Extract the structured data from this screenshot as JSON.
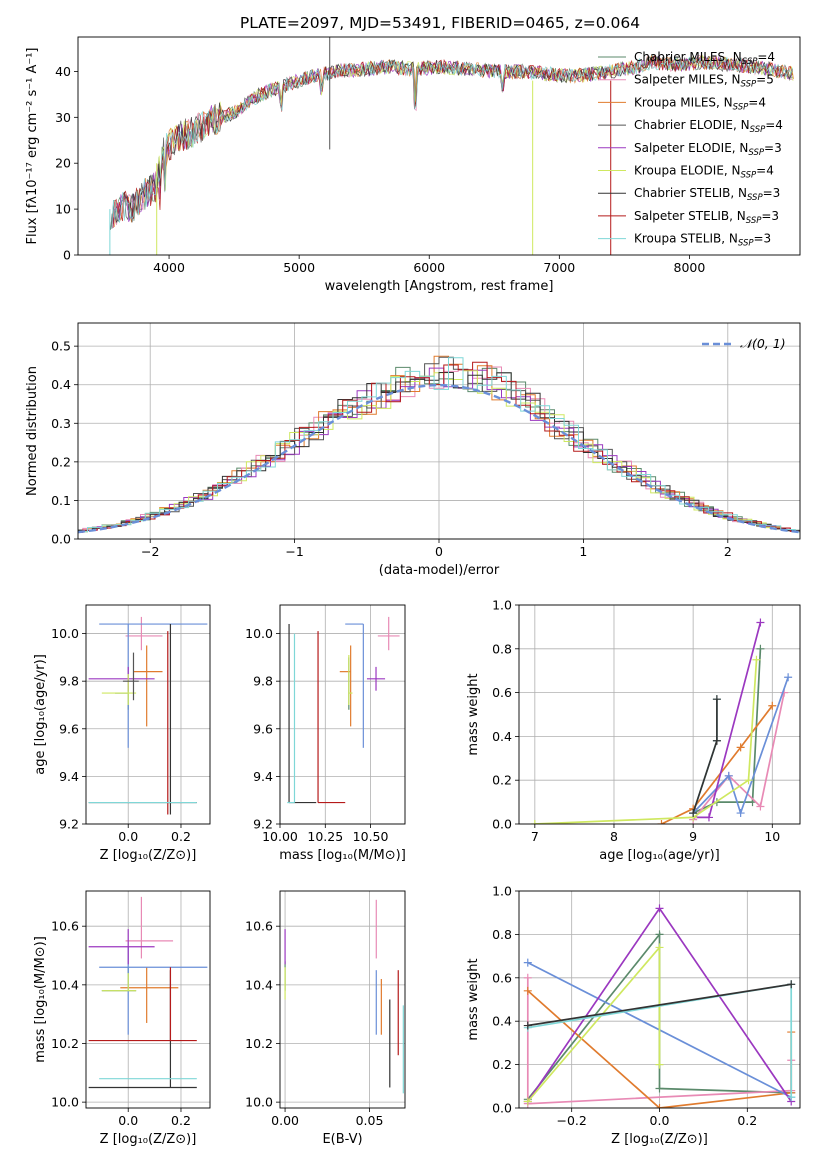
{
  "figure_title": "PLATE=2097, MJD=53491, FIBERID=0465, z=0.064",
  "colors": {
    "Chabrier MILES": "#5b8a6b",
    "Salpeter MILES": "#e88ab5",
    "Kroupa MILES": "#e07b2e",
    "Chabrier ELODIE": "#555555",
    "Salpeter ELODIE": "#9b38c0",
    "Kroupa ELODIE": "#cfe860",
    "Chabrier STELIB": "#333333",
    "Salpeter STELIB": "#b51a1a",
    "Kroupa STELIB": "#7fd7d7",
    "gauss": "#6a8fd8"
  },
  "chart_data": [
    {
      "id": "spectrum",
      "type": "line",
      "xlabel": "wavelength [Angstrom, rest frame]",
      "ylabel": "Flux [fλ10⁻¹⁷ erg cm⁻² s⁻¹ A⁻¹]",
      "xlim": [
        3300,
        8850
      ],
      "ylim": [
        0,
        47.5
      ],
      "xticks": [
        4000,
        5000,
        6000,
        7000,
        8000
      ],
      "yticks": [
        0,
        10,
        20,
        30,
        40
      ],
      "grid": false,
      "legend_position": "top-right",
      "series": [
        {
          "name": "Chabrier MILES, NSSP=4",
          "label_main": "Chabrier MILES, N",
          "label_sub": "SSP",
          "label_tail": "=4",
          "color_key": "Chabrier MILES"
        },
        {
          "name": "Salpeter MILES, NSSP=5",
          "label_main": "Salpeter MILES, N",
          "label_sub": "SSP",
          "label_tail": "=5",
          "color_key": "Salpeter MILES"
        },
        {
          "name": "Kroupa MILES, NSSP=4",
          "label_main": "Kroupa MILES, N",
          "label_sub": "SSP",
          "label_tail": "=4",
          "color_key": "Kroupa MILES"
        },
        {
          "name": "Chabrier ELODIE, NSSP=4",
          "label_main": "Chabrier ELODIE, N",
          "label_sub": "SSP",
          "label_tail": "=4",
          "color_key": "Chabrier ELODIE"
        },
        {
          "name": "Salpeter ELODIE, NSSP=3",
          "label_main": "Salpeter ELODIE, N",
          "label_sub": "SSP",
          "label_tail": "=3",
          "color_key": "Salpeter ELODIE"
        },
        {
          "name": "Kroupa ELODIE, NSSP=4",
          "label_main": "Kroupa ELODIE, N",
          "label_sub": "SSP",
          "label_tail": "=4",
          "color_key": "Kroupa ELODIE"
        },
        {
          "name": "Chabrier STELIB, NSSP=3",
          "label_main": "Chabrier STELIB, N",
          "label_sub": "SSP",
          "label_tail": "=3",
          "color_key": "Chabrier STELIB"
        },
        {
          "name": "Salpeter STELIB, NSSP=3",
          "label_main": "Salpeter STELIB, N",
          "label_sub": "SSP",
          "label_tail": "=3",
          "color_key": "Salpeter STELIB"
        },
        {
          "name": "Kroupa STELIB, NSSP=3",
          "label_main": "Kroupa STELIB, N",
          "label_sub": "SSP",
          "label_tail": "=3",
          "color_key": "Kroupa STELIB"
        }
      ],
      "continuum": {
        "x": [
          3550,
          3650,
          3700,
          3800,
          3900,
          3950,
          4000,
          4100,
          4200,
          4300,
          4400,
          4500,
          4700,
          4900,
          5100,
          5300,
          5500,
          5700,
          5900,
          6100,
          6300,
          6500,
          6700,
          6900,
          7100,
          7300,
          7500,
          7600,
          7700,
          7900,
          8100,
          8300,
          8500,
          8600,
          8800
        ],
        "y": [
          9,
          11,
          10,
          13,
          15,
          22,
          24,
          26,
          27,
          29,
          30,
          31,
          35,
          37,
          39,
          40,
          40.5,
          41,
          40.5,
          41,
          40.5,
          40,
          40,
          39.5,
          39,
          39.5,
          40.5,
          41,
          42,
          41.5,
          42,
          41.5,
          41,
          40.5,
          39.5
        ]
      }
    },
    {
      "id": "residuals",
      "type": "line",
      "xlabel": "(data-model)/error",
      "ylabel": "Normed distribution",
      "xlim": [
        -2.5,
        2.5
      ],
      "ylim": [
        0,
        0.56
      ],
      "xticks": [
        -2,
        -1,
        0,
        1,
        2
      ],
      "yticks": [
        0.0,
        0.1,
        0.2,
        0.3,
        0.4,
        0.5
      ],
      "grid": true,
      "legend_position": "top-right",
      "legend_label": "𝒩(0, 1)",
      "gaussian": {
        "mean": 0,
        "sigma": 1
      }
    },
    {
      "id": "age_vs_Z",
      "type": "scatter",
      "xlabel": "Z [log₁₀(Z/Z⊙)]",
      "ylabel": "age  [log₁₀(age/yr)]",
      "xlim": [
        -0.16,
        0.31
      ],
      "ylim": [
        9.2,
        10.12
      ],
      "xticks": [
        0.0,
        0.2
      ],
      "yticks": [
        9.2,
        9.4,
        9.6,
        9.8,
        10.0
      ],
      "grid": true,
      "points": [
        {
          "x": 0.0,
          "y": 9.75,
          "xerr": [
            0.05,
            0.0
          ],
          "yerr": [
            0.07,
            0.03
          ],
          "color_key": "Chabrier MILES"
        },
        {
          "x": 0.05,
          "y": 9.99,
          "xerr": [
            0.06,
            0.08
          ],
          "yerr": [
            0.06,
            0.08
          ],
          "color_key": "Salpeter MILES"
        },
        {
          "x": 0.07,
          "y": 9.84,
          "xerr": [
            0.05,
            0.06
          ],
          "yerr": [
            0.23,
            0.11
          ],
          "color_key": "Kroupa MILES"
        },
        {
          "x": 0.0,
          "y": 10.04,
          "xerr": [
            0.11,
            0.3
          ],
          "yerr": [
            0.52,
            0.0
          ],
          "color_key": "gauss"
        },
        {
          "x": 0.0,
          "y": 9.81,
          "xerr": [
            0.15,
            0.1
          ],
          "yerr": [
            0.05,
            0.05
          ],
          "color_key": "Salpeter ELODIE"
        },
        {
          "x": 0.0,
          "y": 9.75,
          "xerr": [
            0.1,
            0.03
          ],
          "yerr": [
            0.05,
            0.08
          ],
          "color_key": "Kroupa ELODIE"
        },
        {
          "x": 0.16,
          "y": 9.29,
          "xerr": [
            0.31,
            0.1
          ],
          "yerr": [
            0.05,
            0.75
          ],
          "color_key": "Chabrier STELIB"
        },
        {
          "x": 0.15,
          "y": 9.29,
          "xerr": [
            0.0,
            0.0
          ],
          "yerr": [
            0.05,
            0.72
          ],
          "color_key": "Salpeter STELIB"
        },
        {
          "x": 0.16,
          "y": 9.29,
          "xerr": [
            0.31,
            0.1
          ],
          "yerr": [
            0.0,
            0.0
          ],
          "color_key": "Kroupa STELIB"
        },
        {
          "x": 0.02,
          "y": 9.8,
          "xerr": [
            0.04,
            0.02
          ],
          "yerr": [
            0.08,
            0.12
          ],
          "color_key": "Chabrier ELODIE"
        }
      ]
    },
    {
      "id": "age_vs_mass",
      "type": "scatter",
      "xlabel": "mass [log₁₀(M/M⊙)]",
      "ylabel": "",
      "xlim": [
        10.0,
        10.69
      ],
      "ylim": [
        9.2,
        10.12
      ],
      "xticks": [
        10.0,
        10.25,
        10.5
      ],
      "yticks": [
        9.2,
        9.4,
        9.6,
        9.8,
        10.0
      ],
      "grid": true,
      "points": [
        {
          "x": 10.38,
          "y": 9.78,
          "xerr": [
            0.0,
            0.0
          ],
          "yerr": [
            0.1,
            0.12
          ],
          "color_key": "Chabrier MILES"
        },
        {
          "x": 10.6,
          "y": 9.99,
          "xerr": [
            0.06,
            0.06
          ],
          "yerr": [
            0.06,
            0.08
          ],
          "color_key": "Salpeter MILES"
        },
        {
          "x": 10.39,
          "y": 9.84,
          "xerr": [
            0.06,
            0.0
          ],
          "yerr": [
            0.23,
            0.11
          ],
          "color_key": "Kroupa MILES"
        },
        {
          "x": 10.46,
          "y": 10.04,
          "xerr": [
            0.1,
            0.0
          ],
          "yerr": [
            0.52,
            0.0
          ],
          "color_key": "gauss"
        },
        {
          "x": 10.53,
          "y": 9.81,
          "xerr": [
            0.05,
            0.05
          ],
          "yerr": [
            0.05,
            0.05
          ],
          "color_key": "Salpeter ELODIE"
        },
        {
          "x": 10.38,
          "y": 9.75,
          "xerr": [
            0.0,
            0.02
          ],
          "yerr": [
            0.05,
            0.16
          ],
          "color_key": "Kroupa ELODIE"
        },
        {
          "x": 10.05,
          "y": 9.29,
          "xerr": [
            0.0,
            0.15
          ],
          "yerr": [
            0.0,
            0.75
          ],
          "color_key": "Chabrier STELIB"
        },
        {
          "x": 10.21,
          "y": 9.29,
          "xerr": [
            0.0,
            0.15
          ],
          "yerr": [
            0.0,
            0.72
          ],
          "color_key": "Salpeter STELIB"
        },
        {
          "x": 10.08,
          "y": 9.29,
          "xerr": [
            0.04,
            0.0
          ],
          "yerr": [
            0.0,
            0.71
          ],
          "color_key": "Kroupa STELIB"
        }
      ]
    },
    {
      "id": "massweight_vs_age",
      "type": "line",
      "xlabel": "age  [log₁₀(age/yr)]",
      "ylabel": "mass weight",
      "xlim": [
        6.8,
        10.35
      ],
      "ylim": [
        0,
        1.0
      ],
      "xticks": [
        7,
        8,
        9,
        10
      ],
      "yticks": [
        0.0,
        0.2,
        0.4,
        0.6,
        0.8,
        1.0
      ],
      "grid": true,
      "series": [
        {
          "color_key": "Chabrier MILES",
          "x": [
            9.0,
            9.3,
            9.75,
            9.85
          ],
          "y": [
            0.05,
            0.1,
            0.1,
            0.8
          ]
        },
        {
          "color_key": "Salpeter MILES",
          "x": [
            9.0,
            9.45,
            9.85,
            10.15
          ],
          "y": [
            0.02,
            0.22,
            0.08,
            0.6
          ]
        },
        {
          "color_key": "Kroupa MILES",
          "x": [
            8.6,
            9.0,
            9.6,
            10.0
          ],
          "y": [
            0.0,
            0.07,
            0.35,
            0.54
          ]
        },
        {
          "color_key": "gauss",
          "x": [
            9.0,
            9.45,
            9.6,
            10.2
          ],
          "y": [
            0.05,
            0.22,
            0.05,
            0.67
          ]
        },
        {
          "color_key": "Salpeter ELODIE",
          "x": [
            9.0,
            9.2,
            9.85
          ],
          "y": [
            0.03,
            0.03,
            0.92
          ]
        },
        {
          "color_key": "Kroupa ELODIE",
          "x": [
            7.0,
            9.0,
            9.7,
            9.8
          ],
          "y": [
            0.0,
            0.03,
            0.2,
            0.75
          ]
        },
        {
          "color_key": "Kroupa STELIB",
          "x": [
            9.0,
            9.3,
            9.3
          ],
          "y": [
            0.05,
            0.38,
            0.57
          ]
        },
        {
          "color_key": "Chabrier STELIB",
          "x": [
            9.0,
            9.3,
            9.3
          ],
          "y": [
            0.05,
            0.38,
            0.57
          ]
        }
      ]
    },
    {
      "id": "mass_vs_Z",
      "type": "scatter",
      "xlabel": "Z [log₁₀(Z/Z⊙)]",
      "ylabel": "mass [log₁₀(M/M⊙)]",
      "xlim": [
        -0.16,
        0.31
      ],
      "ylim": [
        9.98,
        10.72
      ],
      "xticks": [
        0.0,
        0.2
      ],
      "yticks": [
        10.0,
        10.2,
        10.4,
        10.6
      ],
      "grid": true,
      "points": [
        {
          "x": 0.0,
          "y": 10.38,
          "xerr": [
            0.1,
            0.03
          ],
          "yerr": [
            0.0,
            0.08
          ],
          "color_key": "Chabrier MILES"
        },
        {
          "x": 0.05,
          "y": 10.55,
          "xerr": [
            0.06,
            0.12
          ],
          "yerr": [
            0.06,
            0.15
          ],
          "color_key": "Salpeter MILES"
        },
        {
          "x": 0.07,
          "y": 10.39,
          "xerr": [
            0.1,
            0.12
          ],
          "yerr": [
            0.12,
            0.07
          ],
          "color_key": "Kroupa MILES"
        },
        {
          "x": 0.0,
          "y": 10.46,
          "xerr": [
            0.11,
            0.3
          ],
          "yerr": [
            0.23,
            0.07
          ],
          "color_key": "gauss"
        },
        {
          "x": 0.0,
          "y": 10.53,
          "xerr": [
            0.15,
            0.1
          ],
          "yerr": [
            0.06,
            0.06
          ],
          "color_key": "Salpeter ELODIE"
        },
        {
          "x": 0.0,
          "y": 10.38,
          "xerr": [
            0.1,
            0.03
          ],
          "yerr": [
            0.0,
            0.06
          ],
          "color_key": "Kroupa ELODIE"
        },
        {
          "x": 0.16,
          "y": 10.05,
          "xerr": [
            0.31,
            0.1
          ],
          "yerr": [
            0.0,
            0.4
          ],
          "color_key": "Chabrier STELIB"
        },
        {
          "x": 0.16,
          "y": 10.21,
          "xerr": [
            0.31,
            0.1
          ],
          "yerr": [
            0.0,
            0.25
          ],
          "color_key": "Salpeter STELIB"
        },
        {
          "x": 0.16,
          "y": 10.08,
          "xerr": [
            0.27,
            0.1
          ],
          "yerr": [
            0.0,
            0.0
          ],
          "color_key": "Kroupa STELIB"
        }
      ]
    },
    {
      "id": "mass_vs_EBV",
      "type": "scatter",
      "xlabel": "E(B-V)",
      "ylabel": "",
      "xlim": [
        -0.003,
        0.071
      ],
      "ylim": [
        9.98,
        10.72
      ],
      "xticks": [
        0.0,
        0.05
      ],
      "yticks": [
        10.0,
        10.2,
        10.4,
        10.6
      ],
      "grid": true,
      "points": [
        {
          "x": 0.0,
          "y": 10.4,
          "xerr": [
            0.0,
            0.0
          ],
          "yerr": [
            0.02,
            0.08
          ],
          "color_key": "Chabrier MILES"
        },
        {
          "x": 0.054,
          "y": 10.55,
          "xerr": [
            0.0,
            0.0
          ],
          "yerr": [
            0.06,
            0.14
          ],
          "color_key": "Salpeter MILES"
        },
        {
          "x": 0.057,
          "y": 10.35,
          "xerr": [
            0.0,
            0.0
          ],
          "yerr": [
            0.12,
            0.07
          ],
          "color_key": "Kroupa MILES"
        },
        {
          "x": 0.054,
          "y": 10.38,
          "xerr": [
            0.0,
            0.0
          ],
          "yerr": [
            0.15,
            0.07
          ],
          "color_key": "gauss"
        },
        {
          "x": 0.0,
          "y": 10.53,
          "xerr": [
            0.0,
            0.0
          ],
          "yerr": [
            0.06,
            0.06
          ],
          "color_key": "Salpeter ELODIE"
        },
        {
          "x": 0.0,
          "y": 10.4,
          "xerr": [
            0.0,
            0.0
          ],
          "yerr": [
            0.05,
            0.06
          ],
          "color_key": "Kroupa ELODIE"
        },
        {
          "x": 0.062,
          "y": 10.25,
          "xerr": [
            0.0,
            0.0
          ],
          "yerr": [
            0.2,
            0.1
          ],
          "color_key": "Chabrier STELIB"
        },
        {
          "x": 0.067,
          "y": 10.3,
          "xerr": [
            0.0,
            0.0
          ],
          "yerr": [
            0.14,
            0.15
          ],
          "color_key": "Salpeter STELIB"
        },
        {
          "x": 0.07,
          "y": 10.18,
          "xerr": [
            0.0,
            0.0
          ],
          "yerr": [
            0.15,
            0.15
          ],
          "color_key": "Kroupa STELIB"
        }
      ]
    },
    {
      "id": "massweight_vs_Z",
      "type": "line",
      "xlabel": "Z [log₁₀(Z/Z⊙)]",
      "ylabel": "mass weight",
      "xlim": [
        -0.32,
        0.32
      ],
      "ylim": [
        0,
        1.0
      ],
      "xticks": [
        -0.2,
        0.0,
        0.2
      ],
      "yticks": [
        0.0,
        0.2,
        0.4,
        0.6,
        0.8,
        1.0
      ],
      "grid": true,
      "series": [
        {
          "color_key": "Chabrier MILES",
          "x": [
            -0.3,
            0.0,
            0.0,
            0.3
          ],
          "y": [
            0.04,
            0.8,
            0.09,
            0.07
          ]
        },
        {
          "color_key": "Salpeter MILES",
          "x": [
            -0.3,
            -0.3,
            0.3,
            0.3
          ],
          "y": [
            0.6,
            0.02,
            0.08,
            0.22
          ]
        },
        {
          "color_key": "Kroupa MILES",
          "x": [
            -0.3,
            0.0,
            0.3,
            0.3
          ],
          "y": [
            0.54,
            0.0,
            0.07,
            0.35
          ]
        },
        {
          "color_key": "gauss",
          "x": [
            -0.3,
            0.3
          ],
          "y": [
            0.67,
            0.05
          ]
        },
        {
          "color_key": "Salpeter ELODIE",
          "x": [
            -0.3,
            0.0,
            0.3
          ],
          "y": [
            0.03,
            0.92,
            0.03
          ]
        },
        {
          "color_key": "Kroupa ELODIE",
          "x": [
            -0.3,
            0.0,
            0.0
          ],
          "y": [
            0.03,
            0.74,
            0.2
          ]
        },
        {
          "color_key": "Kroupa STELIB",
          "x": [
            -0.3,
            0.3,
            0.3
          ],
          "y": [
            0.37,
            0.57,
            0.05
          ]
        },
        {
          "color_key": "Chabrier STELIB",
          "x": [
            -0.3,
            0.3
          ],
          "y": [
            0.38,
            0.57
          ]
        }
      ]
    }
  ]
}
